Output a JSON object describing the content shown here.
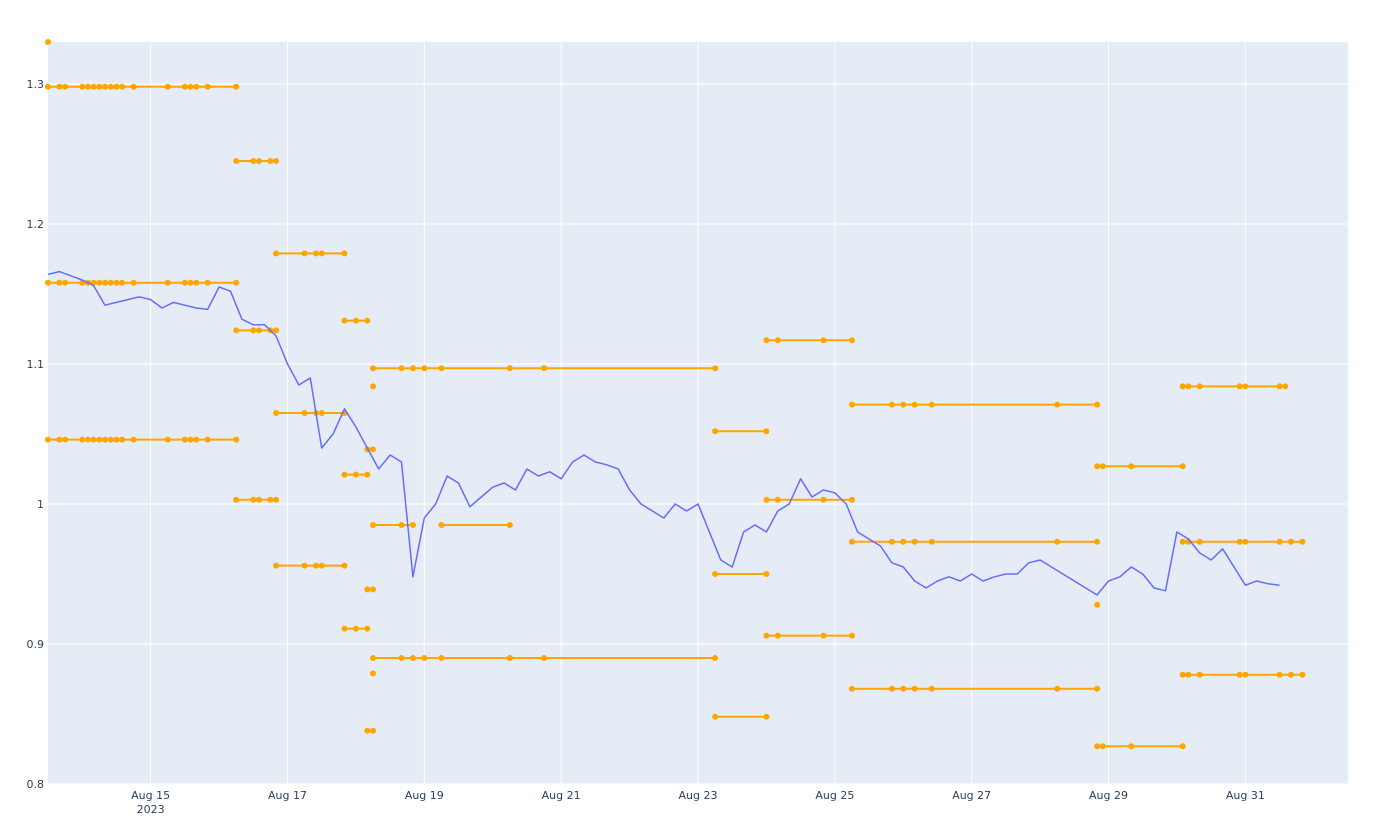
{
  "chart_data": {
    "type": "line",
    "title": "",
    "xlabel": "",
    "ylabel": "",
    "xlim": [
      "2023-08-13T12:00",
      "2023-09-01T12:00"
    ],
    "ylim": [
      0.8,
      1.33
    ],
    "grid": true,
    "x_ticks": [
      {
        "x": "2023-08-15",
        "label": "Aug 15",
        "sublabel": "2023"
      },
      {
        "x": "2023-08-17",
        "label": "Aug 17"
      },
      {
        "x": "2023-08-19",
        "label": "Aug 19"
      },
      {
        "x": "2023-08-21",
        "label": "Aug 21"
      },
      {
        "x": "2023-08-23",
        "label": "Aug 23"
      },
      {
        "x": "2023-08-25",
        "label": "Aug 25"
      },
      {
        "x": "2023-08-27",
        "label": "Aug 27"
      },
      {
        "x": "2023-08-29",
        "label": "Aug 29"
      },
      {
        "x": "2023-08-31",
        "label": "Aug 31"
      }
    ],
    "y_ticks": [
      {
        "y": 0.8,
        "label": "0.8"
      },
      {
        "y": 0.9,
        "label": "0.9"
      },
      {
        "y": 1.0,
        "label": "1"
      },
      {
        "y": 1.1,
        "label": "1.1"
      },
      {
        "y": 1.2,
        "label": "1.2"
      },
      {
        "y": 1.3,
        "label": "1.3"
      }
    ],
    "colors": {
      "price": "#636efa",
      "levels": "#ffa500",
      "plot_bg": "#e5ecf6",
      "grid": "#ffffff",
      "tick_text": "#2a3f5f"
    },
    "price_series": {
      "x": [
        "2023-08-13T12:00",
        "2023-08-13T16:00",
        "2023-08-13T20:00",
        "2023-08-14T00:00",
        "2023-08-14T04:00",
        "2023-08-14T08:00",
        "2023-08-14T12:00",
        "2023-08-14T16:00",
        "2023-08-14T20:00",
        "2023-08-15T00:00",
        "2023-08-15T04:00",
        "2023-08-15T08:00",
        "2023-08-15T12:00",
        "2023-08-15T16:00",
        "2023-08-15T20:00",
        "2023-08-16T00:00",
        "2023-08-16T04:00",
        "2023-08-16T08:00",
        "2023-08-16T12:00",
        "2023-08-16T16:00",
        "2023-08-16T20:00",
        "2023-08-17T00:00",
        "2023-08-17T04:00",
        "2023-08-17T08:00",
        "2023-08-17T12:00",
        "2023-08-17T16:00",
        "2023-08-17T20:00",
        "2023-08-18T00:00",
        "2023-08-18T04:00",
        "2023-08-18T08:00",
        "2023-08-18T12:00",
        "2023-08-18T16:00",
        "2023-08-18T20:00",
        "2023-08-19T00:00",
        "2023-08-19T04:00",
        "2023-08-19T08:00",
        "2023-08-19T12:00",
        "2023-08-19T16:00",
        "2023-08-19T20:00",
        "2023-08-20T00:00",
        "2023-08-20T04:00",
        "2023-08-20T08:00",
        "2023-08-20T12:00",
        "2023-08-20T16:00",
        "2023-08-20T20:00",
        "2023-08-21T00:00",
        "2023-08-21T04:00",
        "2023-08-21T08:00",
        "2023-08-21T12:00",
        "2023-08-21T16:00",
        "2023-08-21T20:00",
        "2023-08-22T00:00",
        "2023-08-22T04:00",
        "2023-08-22T08:00",
        "2023-08-22T12:00",
        "2023-08-22T16:00",
        "2023-08-22T20:00",
        "2023-08-23T00:00",
        "2023-08-23T04:00",
        "2023-08-23T08:00",
        "2023-08-23T12:00",
        "2023-08-23T16:00",
        "2023-08-23T20:00",
        "2023-08-24T00:00",
        "2023-08-24T04:00",
        "2023-08-24T08:00",
        "2023-08-24T12:00",
        "2023-08-24T16:00",
        "2023-08-24T20:00",
        "2023-08-25T00:00",
        "2023-08-25T04:00",
        "2023-08-25T08:00",
        "2023-08-25T12:00",
        "2023-08-25T16:00",
        "2023-08-25T20:00",
        "2023-08-26T00:00",
        "2023-08-26T04:00",
        "2023-08-26T08:00",
        "2023-08-26T12:00",
        "2023-08-26T16:00",
        "2023-08-26T20:00",
        "2023-08-27T00:00",
        "2023-08-27T04:00",
        "2023-08-27T08:00",
        "2023-08-27T12:00",
        "2023-08-27T16:00",
        "2023-08-27T20:00",
        "2023-08-28T00:00",
        "2023-08-28T04:00",
        "2023-08-28T08:00",
        "2023-08-28T12:00",
        "2023-08-28T16:00",
        "2023-08-28T20:00",
        "2023-08-29T00:00",
        "2023-08-29T04:00",
        "2023-08-29T08:00",
        "2023-08-29T12:00",
        "2023-08-29T16:00",
        "2023-08-29T20:00",
        "2023-08-30T00:00",
        "2023-08-30T04:00",
        "2023-08-30T08:00",
        "2023-08-30T12:00",
        "2023-08-30T16:00",
        "2023-08-30T20:00",
        "2023-08-31T00:00",
        "2023-08-31T04:00",
        "2023-08-31T08:00",
        "2023-08-31T12:00"
      ],
      "y": [
        1.164,
        1.166,
        1.163,
        1.16,
        1.156,
        1.142,
        1.144,
        1.146,
        1.148,
        1.146,
        1.14,
        1.144,
        1.142,
        1.14,
        1.139,
        1.155,
        1.152,
        1.132,
        1.128,
        1.128,
        1.12,
        1.1,
        1.085,
        1.09,
        1.04,
        1.05,
        1.068,
        1.055,
        1.04,
        1.025,
        1.035,
        1.03,
        0.948,
        0.99,
        1.0,
        1.02,
        1.015,
        0.998,
        1.005,
        1.012,
        1.015,
        1.01,
        1.025,
        1.02,
        1.023,
        1.018,
        1.03,
        1.035,
        1.03,
        1.028,
        1.025,
        1.01,
        1.0,
        0.995,
        0.99,
        1.0,
        0.995,
        1.0,
        0.98,
        0.96,
        0.955,
        0.98,
        0.985,
        0.98,
        0.995,
        1.0,
        1.018,
        1.005,
        1.01,
        1.008,
        1.0,
        0.98,
        0.975,
        0.97,
        0.958,
        0.955,
        0.945,
        0.94,
        0.945,
        0.948,
        0.945,
        0.95,
        0.945,
        0.948,
        0.95,
        0.95,
        0.958,
        0.96,
        0.955,
        0.95,
        0.945,
        0.94,
        0.935,
        0.945,
        0.948,
        0.955,
        0.95,
        0.94,
        0.938,
        0.98,
        0.975,
        0.965,
        0.96,
        0.968,
        0.955,
        0.942,
        0.945,
        0.943,
        0.942
      ]
    },
    "level_series": [
      {
        "y": 1.33,
        "x": [
          "2023-08-13T12:00"
        ]
      },
      {
        "y": 1.298,
        "x": [
          "2023-08-13T12:00",
          "2023-08-13T16:00",
          "2023-08-13T18:00",
          "2023-08-14T00:00",
          "2023-08-14T02:00",
          "2023-08-14T04:00",
          "2023-08-14T06:00",
          "2023-08-14T08:00",
          "2023-08-14T10:00",
          "2023-08-14T12:00",
          "2023-08-14T14:00",
          "2023-08-14T18:00",
          "2023-08-15T06:00",
          "2023-08-15T12:00",
          "2023-08-15T14:00",
          "2023-08-15T16:00",
          "2023-08-15T20:00",
          "2023-08-16T06:00"
        ]
      },
      {
        "y": 1.158,
        "x": [
          "2023-08-13T12:00",
          "2023-08-13T16:00",
          "2023-08-13T18:00",
          "2023-08-14T00:00",
          "2023-08-14T02:00",
          "2023-08-14T04:00",
          "2023-08-14T06:00",
          "2023-08-14T08:00",
          "2023-08-14T10:00",
          "2023-08-14T12:00",
          "2023-08-14T14:00",
          "2023-08-14T18:00",
          "2023-08-15T06:00",
          "2023-08-15T12:00",
          "2023-08-15T14:00",
          "2023-08-15T16:00",
          "2023-08-15T20:00",
          "2023-08-16T06:00"
        ]
      },
      {
        "y": 1.046,
        "x": [
          "2023-08-13T12:00",
          "2023-08-13T16:00",
          "2023-08-13T18:00",
          "2023-08-14T00:00",
          "2023-08-14T02:00",
          "2023-08-14T04:00",
          "2023-08-14T06:00",
          "2023-08-14T08:00",
          "2023-08-14T10:00",
          "2023-08-14T12:00",
          "2023-08-14T14:00",
          "2023-08-14T18:00",
          "2023-08-15T06:00",
          "2023-08-15T12:00",
          "2023-08-15T14:00",
          "2023-08-15T16:00",
          "2023-08-15T20:00",
          "2023-08-16T06:00"
        ]
      },
      {
        "y": 1.245,
        "x": [
          "2023-08-16T06:00",
          "2023-08-16T12:00",
          "2023-08-16T14:00",
          "2023-08-16T18:00",
          "2023-08-16T20:00"
        ]
      },
      {
        "y": 1.124,
        "x": [
          "2023-08-16T06:00",
          "2023-08-16T12:00",
          "2023-08-16T14:00",
          "2023-08-16T18:00",
          "2023-08-16T20:00"
        ]
      },
      {
        "y": 1.003,
        "x": [
          "2023-08-16T06:00",
          "2023-08-16T12:00",
          "2023-08-16T14:00",
          "2023-08-16T18:00",
          "2023-08-16T20:00"
        ]
      },
      {
        "y": 1.179,
        "x": [
          "2023-08-16T20:00",
          "2023-08-17T06:00",
          "2023-08-17T10:00",
          "2023-08-17T12:00",
          "2023-08-17T20:00"
        ]
      },
      {
        "y": 1.065,
        "x": [
          "2023-08-16T20:00",
          "2023-08-17T06:00",
          "2023-08-17T10:00",
          "2023-08-17T12:00",
          "2023-08-17T20:00"
        ]
      },
      {
        "y": 0.956,
        "x": [
          "2023-08-16T20:00",
          "2023-08-17T06:00",
          "2023-08-17T10:00",
          "2023-08-17T12:00",
          "2023-08-17T20:00"
        ]
      },
      {
        "y": 1.131,
        "x": [
          "2023-08-17T20:00",
          "2023-08-18T00:00",
          "2023-08-18T04:00"
        ]
      },
      {
        "y": 1.021,
        "x": [
          "2023-08-17T20:00",
          "2023-08-18T00:00",
          "2023-08-18T04:00"
        ]
      },
      {
        "y": 0.911,
        "x": [
          "2023-08-17T20:00",
          "2023-08-18T00:00",
          "2023-08-18T04:00"
        ]
      },
      {
        "y": 1.039,
        "x": [
          "2023-08-18T04:00",
          "2023-08-18T06:00"
        ]
      },
      {
        "y": 0.939,
        "x": [
          "2023-08-18T04:00",
          "2023-08-18T06:00"
        ]
      },
      {
        "y": 0.838,
        "x": [
          "2023-08-18T04:00",
          "2023-08-18T06:00"
        ]
      },
      {
        "y": 1.084,
        "x": [
          "2023-08-18T06:00"
        ]
      },
      {
        "y": 0.879,
        "x": [
          "2023-08-18T06:00"
        ]
      },
      {
        "y": 1.097,
        "x": [
          "2023-08-18T06:00",
          "2023-08-18T16:00",
          "2023-08-18T20:00",
          "2023-08-19T00:00",
          "2023-08-19T06:00",
          "2023-08-20T06:00",
          "2023-08-20T18:00",
          "2023-08-23T06:00"
        ]
      },
      {
        "y": 0.89,
        "x": [
          "2023-08-18T06:00",
          "2023-08-18T16:00",
          "2023-08-18T20:00",
          "2023-08-19T00:00",
          "2023-08-19T06:00",
          "2023-08-20T06:00",
          "2023-08-20T18:00",
          "2023-08-23T06:00"
        ]
      },
      {
        "y": 0.985,
        "x": [
          "2023-08-18T06:00",
          "2023-08-18T16:00",
          "2023-08-18T20:00"
        ]
      },
      {
        "y": 0.985,
        "x": [
          "2023-08-19T06:00",
          "2023-08-20T06:00"
        ]
      },
      {
        "y": 1.052,
        "x": [
          "2023-08-23T06:00",
          "2023-08-24T00:00"
        ]
      },
      {
        "y": 0.95,
        "x": [
          "2023-08-23T06:00",
          "2023-08-24T00:00"
        ]
      },
      {
        "y": 0.848,
        "x": [
          "2023-08-23T06:00",
          "2023-08-24T00:00"
        ]
      },
      {
        "y": 1.117,
        "x": [
          "2023-08-24T00:00",
          "2023-08-24T04:00",
          "2023-08-24T20:00",
          "2023-08-25T06:00"
        ]
      },
      {
        "y": 1.003,
        "x": [
          "2023-08-24T00:00",
          "2023-08-24T04:00",
          "2023-08-24T20:00",
          "2023-08-25T06:00"
        ]
      },
      {
        "y": 0.906,
        "x": [
          "2023-08-24T00:00",
          "2023-08-24T04:00",
          "2023-08-24T20:00",
          "2023-08-25T06:00"
        ]
      },
      {
        "y": 1.071,
        "x": [
          "2023-08-25T06:00",
          "2023-08-25T20:00",
          "2023-08-26T00:00",
          "2023-08-26T04:00",
          "2023-08-26T10:00",
          "2023-08-28T06:00",
          "2023-08-28T20:00"
        ]
      },
      {
        "y": 0.973,
        "x": [
          "2023-08-25T06:00",
          "2023-08-25T20:00",
          "2023-08-26T00:00",
          "2023-08-26T04:00",
          "2023-08-26T10:00",
          "2023-08-28T06:00",
          "2023-08-28T20:00"
        ]
      },
      {
        "y": 0.868,
        "x": [
          "2023-08-25T06:00",
          "2023-08-25T20:00",
          "2023-08-26T00:00",
          "2023-08-26T04:00",
          "2023-08-26T10:00",
          "2023-08-28T06:00",
          "2023-08-28T20:00"
        ]
      },
      {
        "y": 1.027,
        "x": [
          "2023-08-28T20:00",
          "2023-08-28T22:00",
          "2023-08-29T08:00",
          "2023-08-30T02:00"
        ]
      },
      {
        "y": 0.928,
        "x": [
          "2023-08-28T20:00"
        ]
      },
      {
        "y": 0.827,
        "x": [
          "2023-08-28T20:00",
          "2023-08-28T22:00",
          "2023-08-29T08:00",
          "2023-08-30T02:00"
        ]
      },
      {
        "y": 1.084,
        "x": [
          "2023-08-30T02:00",
          "2023-08-30T04:00",
          "2023-08-30T08:00",
          "2023-08-30T22:00",
          "2023-08-31T00:00",
          "2023-08-31T12:00",
          "2023-08-31T14:00"
        ]
      },
      {
        "y": 0.973,
        "x": [
          "2023-08-30T02:00",
          "2023-08-30T04:00",
          "2023-08-30T08:00",
          "2023-08-30T22:00",
          "2023-08-31T00:00",
          "2023-08-31T12:00",
          "2023-08-31T16:00",
          "2023-08-31T20:00"
        ]
      },
      {
        "y": 0.878,
        "x": [
          "2023-08-30T02:00",
          "2023-08-30T04:00",
          "2023-08-30T08:00",
          "2023-08-30T22:00",
          "2023-08-31T00:00",
          "2023-08-31T12:00",
          "2023-08-31T16:00",
          "2023-08-31T20:00"
        ]
      }
    ]
  }
}
